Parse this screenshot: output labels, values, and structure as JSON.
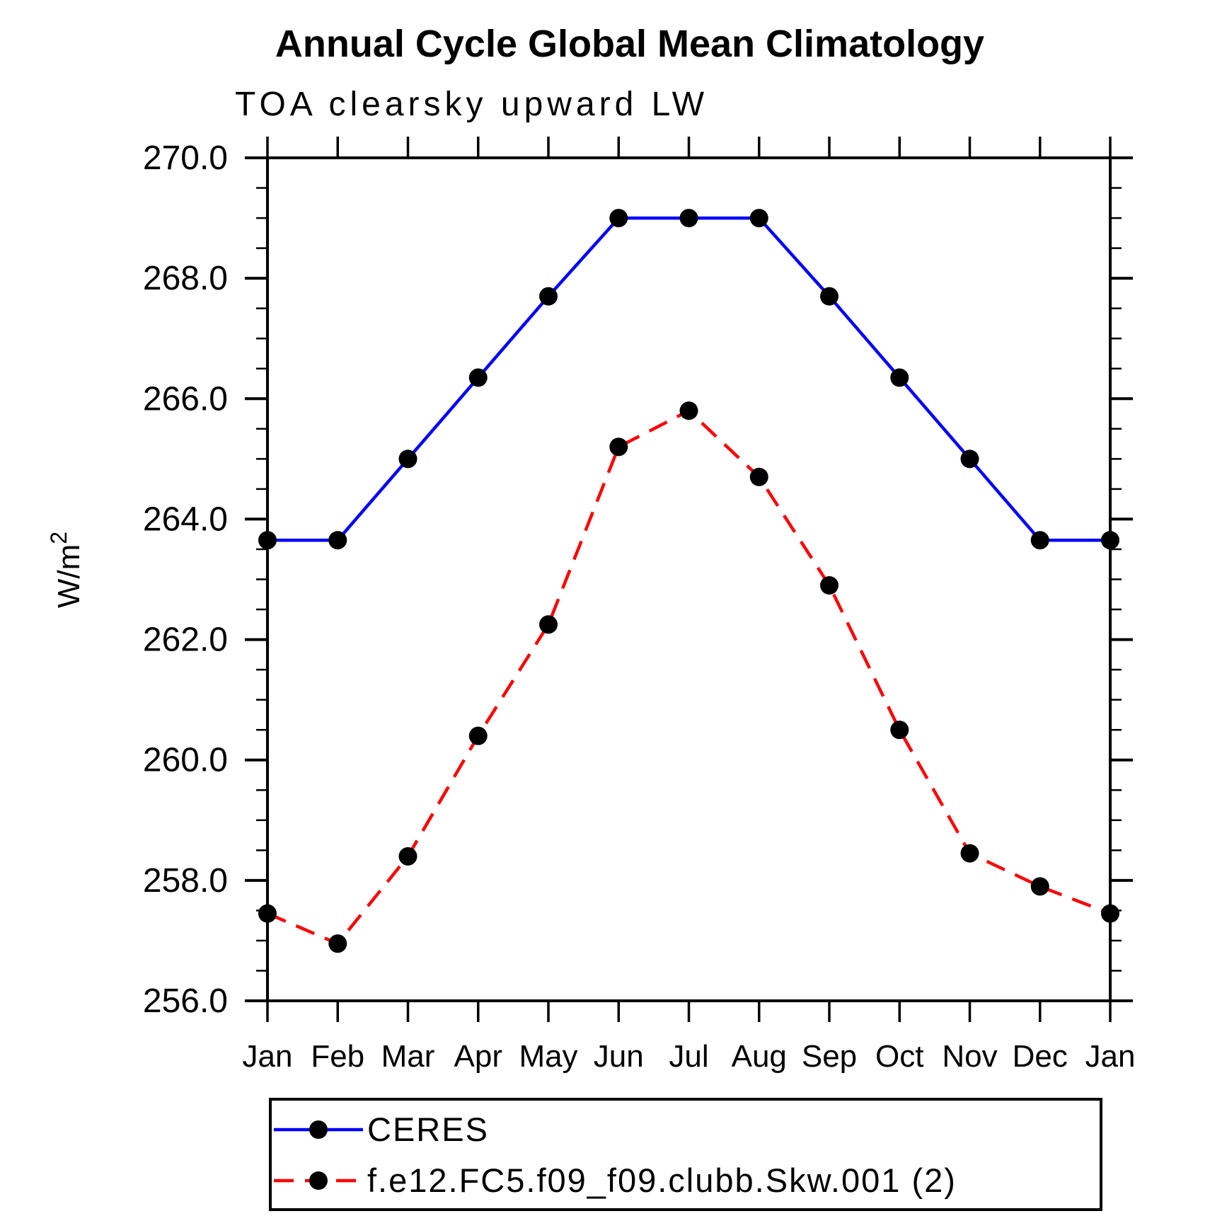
{
  "page": {
    "background": "#ffffff"
  },
  "chart_data": {
    "type": "line",
    "title": "Annual Cycle Global Mean Climatology",
    "subtitle": "TOA clearsky upward LW",
    "ylabel": {
      "base": "W/m",
      "sup": "2"
    },
    "xlabel": "",
    "categories": [
      "Jan",
      "Feb",
      "Mar",
      "Apr",
      "May",
      "Jun",
      "Jul",
      "Aug",
      "Sep",
      "Oct",
      "Nov",
      "Dec",
      "Jan"
    ],
    "ylim": [
      256.0,
      270.0
    ],
    "ytick_major_step": 2.0,
    "ytick_minor_step": 0.5,
    "ytick_labels": [
      "256.0",
      "258.0",
      "260.0",
      "262.0",
      "264.0",
      "266.0",
      "268.0",
      "270.0"
    ],
    "grid": "off",
    "legend_position": "bottom",
    "series": [
      {
        "name": "CERES",
        "color": "#0000ff",
        "style": "solid",
        "marker": "filled-circle",
        "marker_color": "#000000",
        "values": [
          263.65,
          263.65,
          265.0,
          266.35,
          267.7,
          269.0,
          269.0,
          269.0,
          267.7,
          266.35,
          265.0,
          263.65,
          263.65
        ]
      },
      {
        "name": "f.e12.FC5.f09_f09.clubb.Skw.001 (2)",
        "color": "#ff0000",
        "style": "dashed",
        "marker": "filled-circle",
        "marker_color": "#000000",
        "values": [
          257.45,
          256.95,
          258.4,
          260.4,
          262.25,
          265.2,
          265.8,
          264.7,
          262.9,
          260.5,
          258.45,
          257.9,
          257.45
        ]
      }
    ]
  }
}
